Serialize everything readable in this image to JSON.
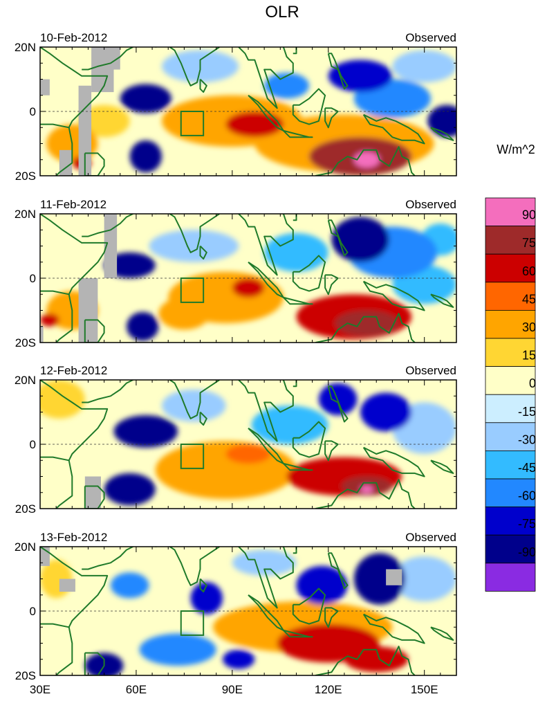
{
  "chart_data": {
    "type": "heatmap",
    "title": "OLR",
    "units_label": "W/m^2",
    "panel_right_label": "Observed",
    "x_ticks": [
      "30E",
      "60E",
      "90E",
      "120E",
      "150E"
    ],
    "x_tick_values": [
      30,
      60,
      90,
      120,
      150
    ],
    "y_ticks": [
      "20N",
      "0",
      "20S"
    ],
    "y_tick_values": [
      20,
      0,
      -20
    ],
    "xlim": [
      30,
      160
    ],
    "ylim": [
      -20,
      20
    ],
    "missing_color": "#b4b4b4",
    "coast_color": "#1f7a2a",
    "box_lon": [
      74,
      81
    ],
    "box_lat": [
      -7.5,
      0
    ],
    "legend": {
      "labels": [
        "90",
        "75",
        "60",
        "45",
        "30",
        "15",
        "0",
        "-15",
        "-30",
        "-45",
        "-60",
        "-75",
        "-90"
      ],
      "colors": [
        "#f46ebd",
        "#9e2a2a",
        "#cc0000",
        "#ff6600",
        "#ffa500",
        "#ffd633",
        "#ffffc8",
        "#cceeff",
        "#99ccff",
        "#33bbff",
        "#2288ff",
        "#0000cc",
        "#00008b",
        "#8a2be2"
      ]
    },
    "panels": [
      {
        "date": "10-Feb-2012",
        "blobs": [
          {
            "lon": 63,
            "lat": 4,
            "rx": 8,
            "ry": 4.5,
            "v": -85
          },
          {
            "lon": 63,
            "lat": -14,
            "rx": 5,
            "ry": 5,
            "v": -85
          },
          {
            "lon": 97,
            "lat": -4,
            "rx": 9,
            "ry": 4,
            "v": 65
          },
          {
            "lon": 90,
            "lat": -3,
            "rx": 22,
            "ry": 8,
            "v": 35
          },
          {
            "lon": 130,
            "lat": -14,
            "rx": 16,
            "ry": 6,
            "v": 78
          },
          {
            "lon": 132,
            "lat": -15,
            "rx": 4,
            "ry": 2.5,
            "v": 95
          },
          {
            "lon": 125,
            "lat": -10,
            "rx": 28,
            "ry": 9,
            "v": 35
          },
          {
            "lon": 130,
            "lat": 11,
            "rx": 10,
            "ry": 5,
            "v": -65
          },
          {
            "lon": 107,
            "lat": 8,
            "rx": 7,
            "ry": 4,
            "v": -50
          },
          {
            "lon": 140,
            "lat": 4,
            "rx": 12,
            "ry": 6,
            "v": -55
          },
          {
            "lon": 157,
            "lat": -3,
            "rx": 6,
            "ry": 5,
            "v": -80
          },
          {
            "lon": 80,
            "lat": 14,
            "rx": 12,
            "ry": 5,
            "v": -30
          },
          {
            "lon": 40,
            "lat": -10,
            "rx": 8,
            "ry": 6,
            "v": 40
          },
          {
            "lon": 43,
            "lat": -16,
            "rx": 3,
            "ry": 2,
            "v": 65
          },
          {
            "lon": 50,
            "lat": -3,
            "rx": 8,
            "ry": 5,
            "v": 20
          },
          {
            "lon": 150,
            "lat": 14,
            "rx": 10,
            "ry": 5,
            "v": -30
          }
        ],
        "missing": [
          [
            42,
            -20,
            4,
            28
          ],
          [
            46,
            6,
            7,
            14
          ],
          [
            30,
            5,
            3,
            5
          ],
          [
            51,
            13,
            4,
            7
          ],
          [
            36,
            -20,
            4,
            8
          ]
        ]
      },
      {
        "date": "11-Feb-2012",
        "blobs": [
          {
            "lon": 58,
            "lat": 4,
            "rx": 8,
            "ry": 4,
            "v": -80
          },
          {
            "lon": 62,
            "lat": -15,
            "rx": 5,
            "ry": 4.5,
            "v": -85
          },
          {
            "lon": 95,
            "lat": -3,
            "rx": 5,
            "ry": 3,
            "v": 65
          },
          {
            "lon": 88,
            "lat": -6,
            "rx": 18,
            "ry": 8,
            "v": 35
          },
          {
            "lon": 128,
            "lat": -12,
            "rx": 18,
            "ry": 7,
            "v": 65
          },
          {
            "lon": 132,
            "lat": -14,
            "rx": 10,
            "ry": 4,
            "v": 78
          },
          {
            "lon": 130,
            "lat": 12,
            "rx": 9,
            "ry": 7,
            "v": -80
          },
          {
            "lon": 140,
            "lat": 8,
            "rx": 14,
            "ry": 8,
            "v": -50
          },
          {
            "lon": 110,
            "lat": 8,
            "rx": 10,
            "ry": 6,
            "v": -35
          },
          {
            "lon": 150,
            "lat": -2,
            "rx": 10,
            "ry": 6,
            "v": -40
          },
          {
            "lon": 78,
            "lat": 10,
            "rx": 14,
            "ry": 5,
            "v": -30
          },
          {
            "lon": 40,
            "lat": -10,
            "rx": 8,
            "ry": 6,
            "v": 40
          },
          {
            "lon": 33,
            "lat": -13,
            "rx": 3,
            "ry": 2,
            "v": 70
          },
          {
            "lon": 75,
            "lat": -11,
            "rx": 8,
            "ry": 5,
            "v": 30
          },
          {
            "lon": 155,
            "lat": 12,
            "rx": 6,
            "ry": 5,
            "v": -35
          }
        ],
        "missing": [
          [
            42,
            -20,
            6,
            20
          ],
          [
            50,
            0,
            4,
            20
          ],
          [
            28,
            -20,
            3,
            5
          ]
        ]
      },
      {
        "date": "12-Feb-2012",
        "blobs": [
          {
            "lon": 63,
            "lat": 4,
            "rx": 10,
            "ry": 5,
            "v": -80
          },
          {
            "lon": 58,
            "lat": -14,
            "rx": 8,
            "ry": 5,
            "v": -85
          },
          {
            "lon": 95,
            "lat": -3,
            "rx": 7,
            "ry": 3,
            "v": 50
          },
          {
            "lon": 88,
            "lat": -8,
            "rx": 22,
            "ry": 9,
            "v": 35
          },
          {
            "lon": 125,
            "lat": -10,
            "rx": 18,
            "ry": 6,
            "v": 65
          },
          {
            "lon": 132,
            "lat": -13,
            "rx": 8,
            "ry": 3,
            "v": 78
          },
          {
            "lon": 132,
            "lat": -14,
            "rx": 2,
            "ry": 1.2,
            "v": 95
          },
          {
            "lon": 123,
            "lat": 14,
            "rx": 6,
            "ry": 5,
            "v": -75
          },
          {
            "lon": 138,
            "lat": 10,
            "rx": 8,
            "ry": 6,
            "v": -75
          },
          {
            "lon": 108,
            "lat": 6,
            "rx": 12,
            "ry": 6,
            "v": -35
          },
          {
            "lon": 150,
            "lat": 5,
            "rx": 10,
            "ry": 8,
            "v": -30
          },
          {
            "lon": 78,
            "lat": 12,
            "rx": 10,
            "ry": 5,
            "v": -25
          },
          {
            "lon": 36,
            "lat": 14,
            "rx": 8,
            "ry": 6,
            "v": 25
          }
        ],
        "missing": [
          [
            44,
            -20,
            5,
            10
          ]
        ]
      },
      {
        "date": "13-Feb-2012",
        "blobs": [
          {
            "lon": 50,
            "lat": -17,
            "rx": 6,
            "ry": 4,
            "v": -80
          },
          {
            "lon": 58,
            "lat": 8,
            "rx": 6,
            "ry": 4,
            "v": -50
          },
          {
            "lon": 82,
            "lat": 4,
            "rx": 5,
            "ry": 5,
            "v": -75
          },
          {
            "lon": 73,
            "lat": -12,
            "rx": 12,
            "ry": 5,
            "v": -55
          },
          {
            "lon": 92,
            "lat": -15,
            "rx": 5,
            "ry": 3,
            "v": -75
          },
          {
            "lon": 120,
            "lat": -10,
            "rx": 16,
            "ry": 6,
            "v": 65
          },
          {
            "lon": 135,
            "lat": -15,
            "rx": 10,
            "ry": 4,
            "v": 72
          },
          {
            "lon": 112,
            "lat": -5,
            "rx": 28,
            "ry": 8,
            "v": 35
          },
          {
            "lon": 136,
            "lat": 10,
            "rx": 8,
            "ry": 8,
            "v": -80
          },
          {
            "lon": 118,
            "lat": 8,
            "rx": 8,
            "ry": 6,
            "v": -65
          },
          {
            "lon": 150,
            "lat": 10,
            "rx": 10,
            "ry": 7,
            "v": -30
          },
          {
            "lon": 35,
            "lat": 10,
            "rx": 5,
            "ry": 6,
            "v": 20
          },
          {
            "lon": 100,
            "lat": 15,
            "rx": 10,
            "ry": 4,
            "v": -25
          }
        ],
        "missing": [
          [
            30,
            14,
            3,
            6
          ],
          [
            36,
            6,
            5,
            4
          ],
          [
            138,
            8,
            5,
            5
          ]
        ]
      }
    ]
  }
}
